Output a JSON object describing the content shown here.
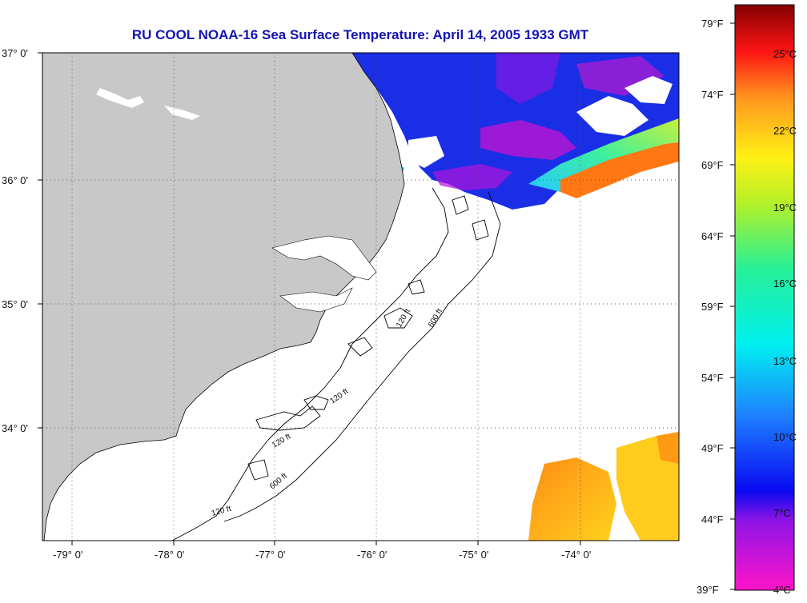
{
  "title": "RU COOL  NOAA-16  Sea Surface Temperature:  April 14, 2005 1933 GMT",
  "lat_labels": [
    "37° 0'",
    "36° 0'",
    "35° 0'",
    "34° 0'"
  ],
  "lon_labels": [
    "-79° 0'",
    "-78° 0'",
    "-77° 0'",
    "-76° 0'",
    "-75° 0'",
    "-74° 0'"
  ],
  "contour_labels": [
    "120 ft",
    "120 ft",
    "120 ft",
    "600 ft",
    "600 ft",
    "120 ft"
  ],
  "colorbar": {
    "fahrenheit": [
      "79°F",
      "74°F",
      "69°F",
      "64°F",
      "59°F",
      "54°F",
      "49°F",
      "44°F",
      "39°F"
    ],
    "celsius": [
      "25°C",
      "22°C",
      "19°C",
      "16°C",
      "13°C",
      "10°C",
      "7°C",
      "4°C"
    ]
  },
  "colors": {
    "land": "#c8c8c8",
    "title": "#1414b4",
    "cold_sst": "#1a2ee6",
    "warm_sst": "#ff8c14"
  }
}
